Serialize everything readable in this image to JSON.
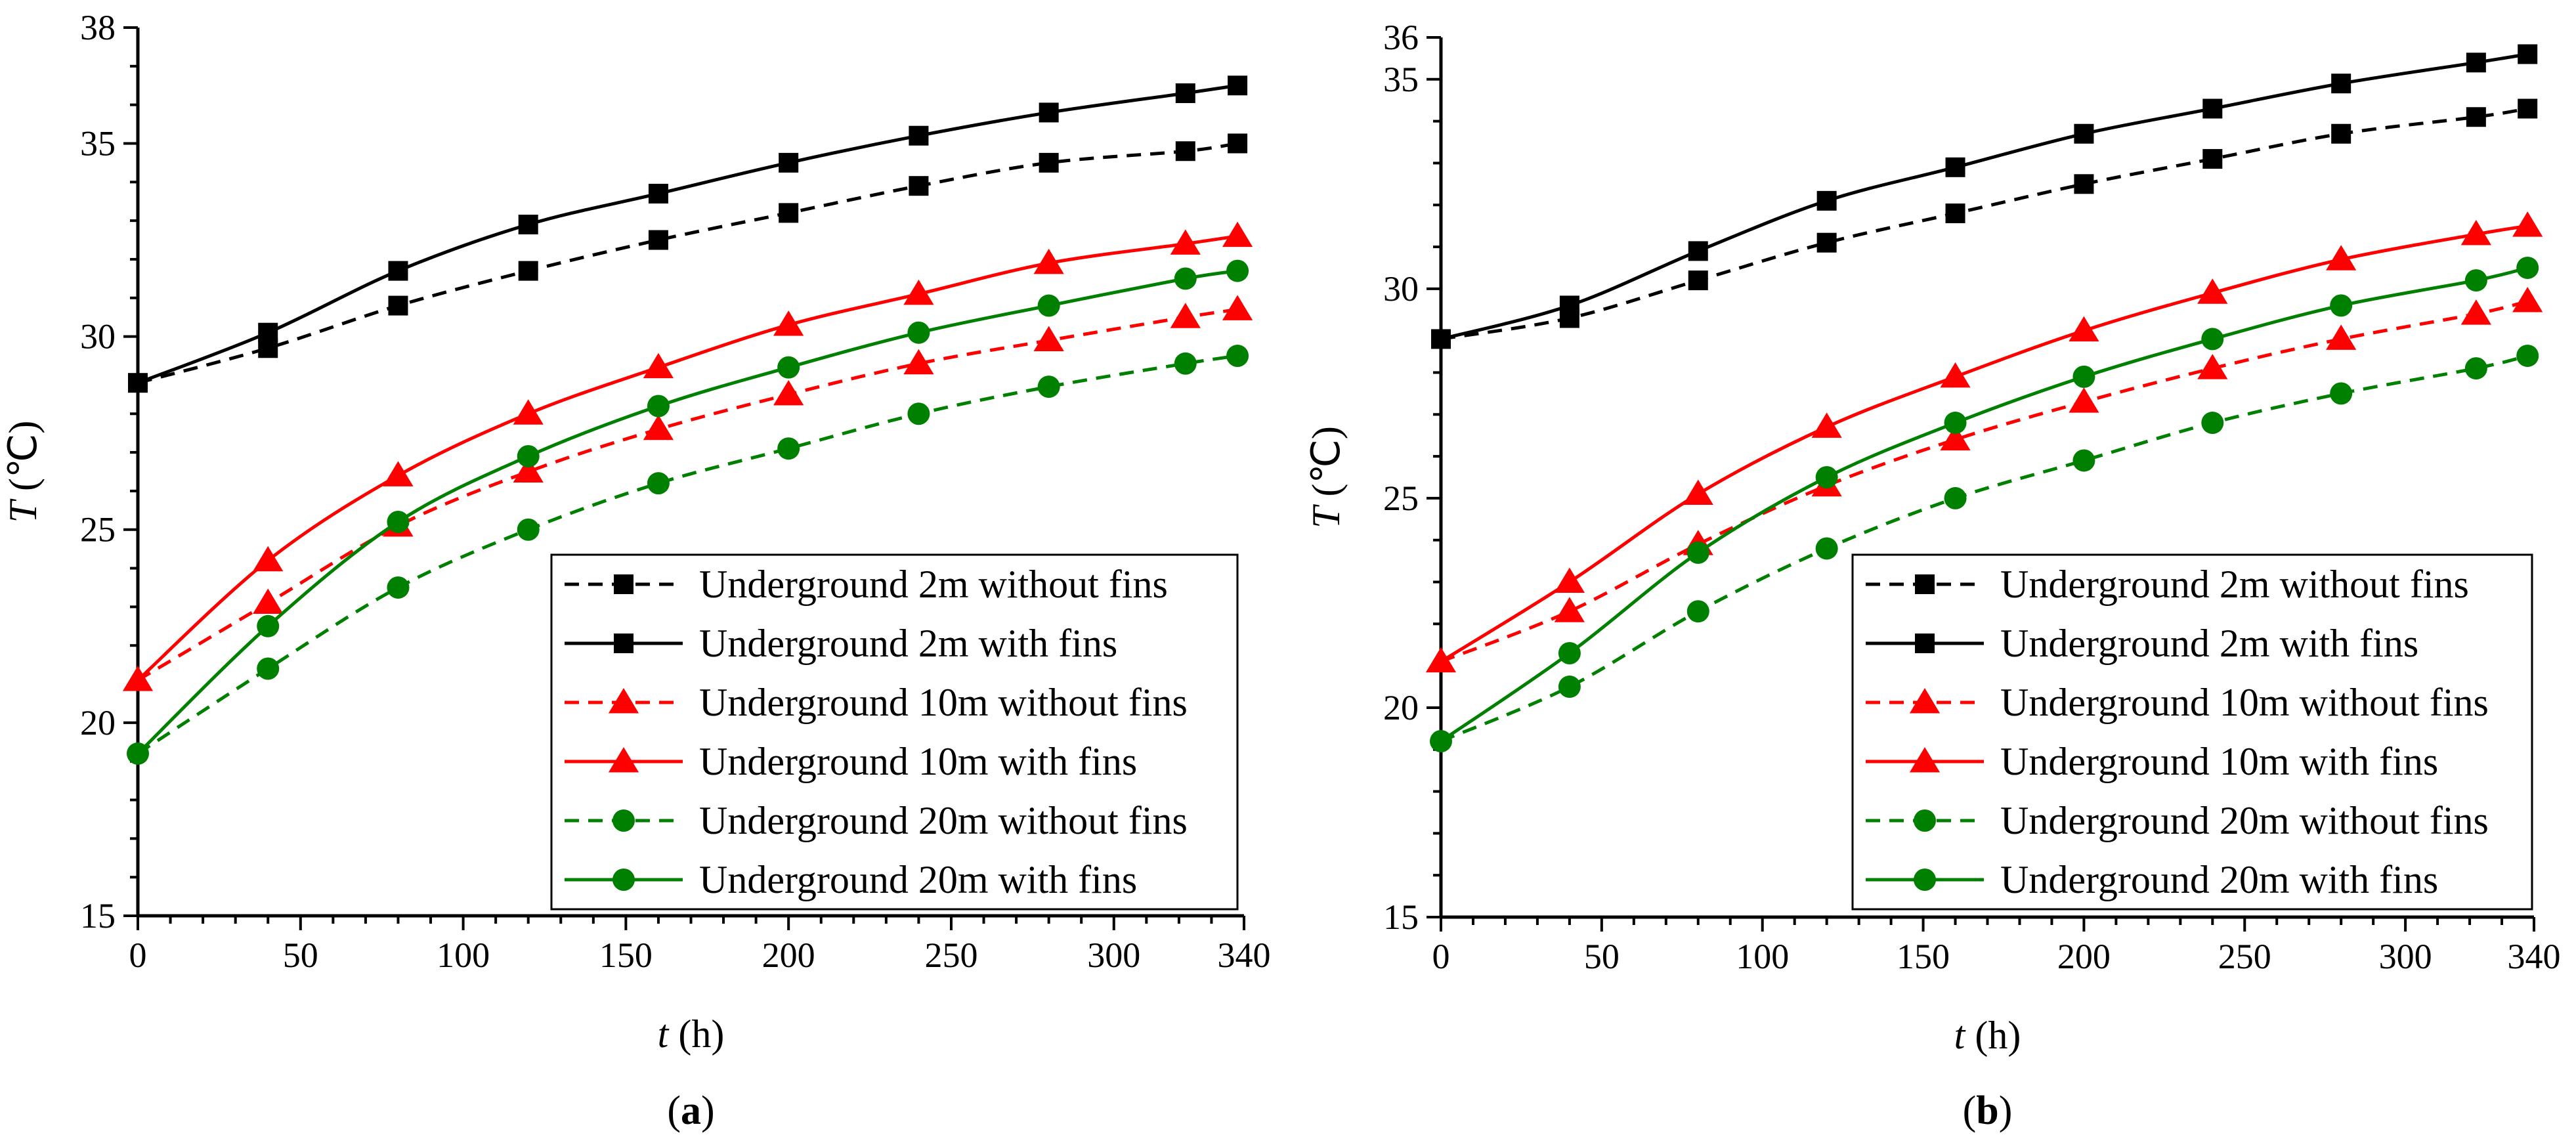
{
  "chart_data": [
    {
      "type": "line",
      "panel_label": "a",
      "xlabel_var": "t",
      "xlabel_unit": " (h)",
      "ylabel_var": "T",
      "ylabel_unit": " (℃)",
      "xlim": [
        0,
        340
      ],
      "ylim": [
        15,
        38
      ],
      "xticks": [
        0,
        50,
        100,
        150,
        200,
        250,
        300,
        340
      ],
      "yticks": [
        15,
        20,
        25,
        30,
        35,
        38
      ],
      "x": [
        0,
        40,
        80,
        120,
        160,
        200,
        240,
        280,
        322,
        338
      ],
      "legend_position": "bottom-right",
      "series": [
        {
          "name": "Underground 2m without fins",
          "color": "#000000",
          "dash": true,
          "marker": "square",
          "values": [
            28.8,
            29.7,
            30.8,
            31.7,
            32.5,
            33.2,
            33.9,
            34.5,
            34.8,
            35.0
          ]
        },
        {
          "name": "Underground 2m with fins",
          "color": "#000000",
          "dash": false,
          "marker": "square",
          "values": [
            28.8,
            30.1,
            31.7,
            32.9,
            33.7,
            34.5,
            35.2,
            35.8,
            36.3,
            36.5
          ]
        },
        {
          "name": "Underground 10m without fins",
          "color": "#ff0000",
          "dash": true,
          "marker": "triangle",
          "values": [
            21.1,
            23.1,
            25.1,
            26.5,
            27.6,
            28.5,
            29.3,
            29.9,
            30.5,
            30.7
          ]
        },
        {
          "name": "Underground 10m with fins",
          "color": "#ff0000",
          "dash": false,
          "marker": "triangle",
          "values": [
            21.1,
            24.2,
            26.4,
            28.0,
            29.2,
            30.3,
            31.1,
            31.9,
            32.4,
            32.6
          ]
        },
        {
          "name": "Underground 20m without fins",
          "color": "#008000",
          "dash": true,
          "marker": "circle",
          "values": [
            19.2,
            21.4,
            23.5,
            25.0,
            26.2,
            27.1,
            28.0,
            28.7,
            29.3,
            29.5
          ]
        },
        {
          "name": "Underground 20m with fins",
          "color": "#008000",
          "dash": false,
          "marker": "circle",
          "values": [
            19.2,
            22.5,
            25.2,
            26.9,
            28.2,
            29.2,
            30.1,
            30.8,
            31.5,
            31.7
          ]
        }
      ]
    },
    {
      "type": "line",
      "panel_label": "b",
      "xlabel_var": "t",
      "xlabel_unit": " (h)",
      "ylabel_var": "T",
      "ylabel_unit": " (℃)",
      "xlim": [
        0,
        340
      ],
      "ylim": [
        15,
        36
      ],
      "xticks": [
        0,
        50,
        100,
        150,
        200,
        250,
        300,
        340
      ],
      "yticks": [
        15,
        20,
        25,
        30,
        35,
        36
      ],
      "x": [
        0,
        40,
        80,
        120,
        160,
        200,
        240,
        280,
        322,
        338
      ],
      "legend_position": "bottom-right",
      "series": [
        {
          "name": "Underground 2m without fins",
          "color": "#000000",
          "dash": true,
          "marker": "square",
          "values": [
            28.8,
            29.3,
            30.2,
            31.1,
            31.8,
            32.5,
            33.1,
            33.7,
            34.1,
            34.3
          ]
        },
        {
          "name": "Underground 2m with fins",
          "color": "#000000",
          "dash": false,
          "marker": "square",
          "values": [
            28.8,
            29.6,
            30.9,
            32.1,
            32.9,
            33.7,
            34.3,
            34.9,
            35.4,
            35.6
          ]
        },
        {
          "name": "Underground 10m without fins",
          "color": "#ff0000",
          "dash": true,
          "marker": "triangle",
          "values": [
            21.1,
            22.3,
            23.9,
            25.3,
            26.4,
            27.3,
            28.1,
            28.8,
            29.4,
            29.7
          ]
        },
        {
          "name": "Underground 10m with fins",
          "color": "#ff0000",
          "dash": false,
          "marker": "triangle",
          "values": [
            21.1,
            23.0,
            25.1,
            26.7,
            27.9,
            29.0,
            29.9,
            30.7,
            31.3,
            31.5
          ]
        },
        {
          "name": "Underground 20m without fins",
          "color": "#008000",
          "dash": true,
          "marker": "circle",
          "values": [
            19.2,
            20.5,
            22.3,
            23.8,
            25.0,
            25.9,
            26.8,
            27.5,
            28.1,
            28.4
          ]
        },
        {
          "name": "Underground 20m with fins",
          "color": "#008000",
          "dash": false,
          "marker": "circle",
          "values": [
            19.2,
            21.3,
            23.7,
            25.5,
            26.8,
            27.9,
            28.8,
            29.6,
            30.2,
            30.5
          ]
        }
      ]
    }
  ]
}
